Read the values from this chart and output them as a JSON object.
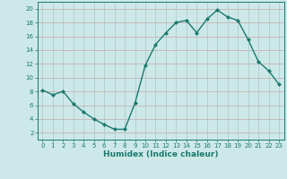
{
  "x": [
    0,
    1,
    2,
    3,
    4,
    5,
    6,
    7,
    8,
    9,
    10,
    11,
    12,
    13,
    14,
    15,
    16,
    17,
    18,
    19,
    20,
    21,
    22,
    23
  ],
  "y": [
    8.2,
    7.5,
    8.0,
    6.2,
    5.0,
    4.0,
    3.2,
    2.5,
    2.5,
    6.3,
    11.8,
    14.8,
    16.5,
    18.0,
    18.3,
    16.5,
    18.5,
    19.8,
    18.8,
    18.3,
    15.5,
    12.3,
    11.0,
    9.0
  ],
  "line_color": "#1a7a6e",
  "marker": "D",
  "markersize": 2.0,
  "linewidth": 1.0,
  "bg_color": "#cde8e8",
  "xlabel": "Humidex (Indice chaleur)",
  "xlim": [
    -0.5,
    23.5
  ],
  "ylim": [
    1,
    21
  ],
  "yticks": [
    2,
    4,
    6,
    8,
    10,
    12,
    14,
    16,
    18,
    20
  ],
  "xticks": [
    0,
    1,
    2,
    3,
    4,
    5,
    6,
    7,
    8,
    9,
    10,
    11,
    12,
    13,
    14,
    15,
    16,
    17,
    18,
    19,
    20,
    21,
    22,
    23
  ],
  "grid_color_h": "#c4a8a8",
  "grid_color_v": "#a8c8c8",
  "tick_color": "#1a7a6e",
  "label_fontsize": 6.0,
  "tick_fontsize": 5.0,
  "xlabel_fontsize": 6.5
}
